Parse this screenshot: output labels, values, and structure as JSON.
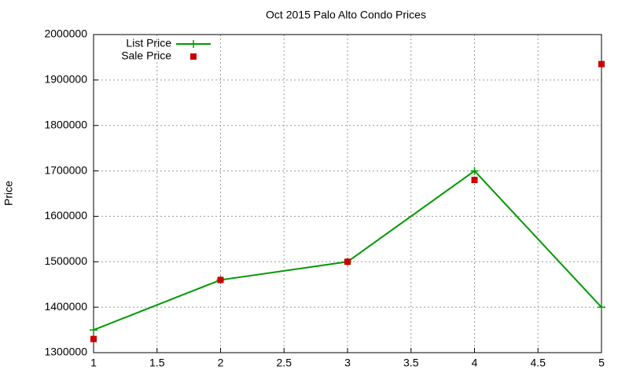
{
  "chart_data": {
    "type": "line",
    "title": "Oct 2015 Palo Alto Condo Prices",
    "y_label": "Price",
    "x": [
      1,
      2,
      3,
      4,
      5
    ],
    "series": [
      {
        "name": "List Price",
        "color": "#009900",
        "style": "linespoints",
        "values": [
          1350000,
          1460000,
          1500000,
          1700000,
          1400000
        ]
      },
      {
        "name": "Sale Price",
        "color": "#cc0000",
        "style": "points",
        "values": [
          1330000,
          1460000,
          1500000,
          1680000,
          1935000
        ]
      }
    ],
    "xlim": [
      1,
      5
    ],
    "xticks": [
      1,
      1.5,
      2,
      2.5,
      3,
      3.5,
      4,
      4.5,
      5
    ],
    "ylim": [
      1300000,
      2000000
    ],
    "yticks": [
      1300000,
      1400000,
      1500000,
      1600000,
      1700000,
      1800000,
      1900000,
      2000000
    ],
    "grid": true,
    "legend": "top-left"
  }
}
